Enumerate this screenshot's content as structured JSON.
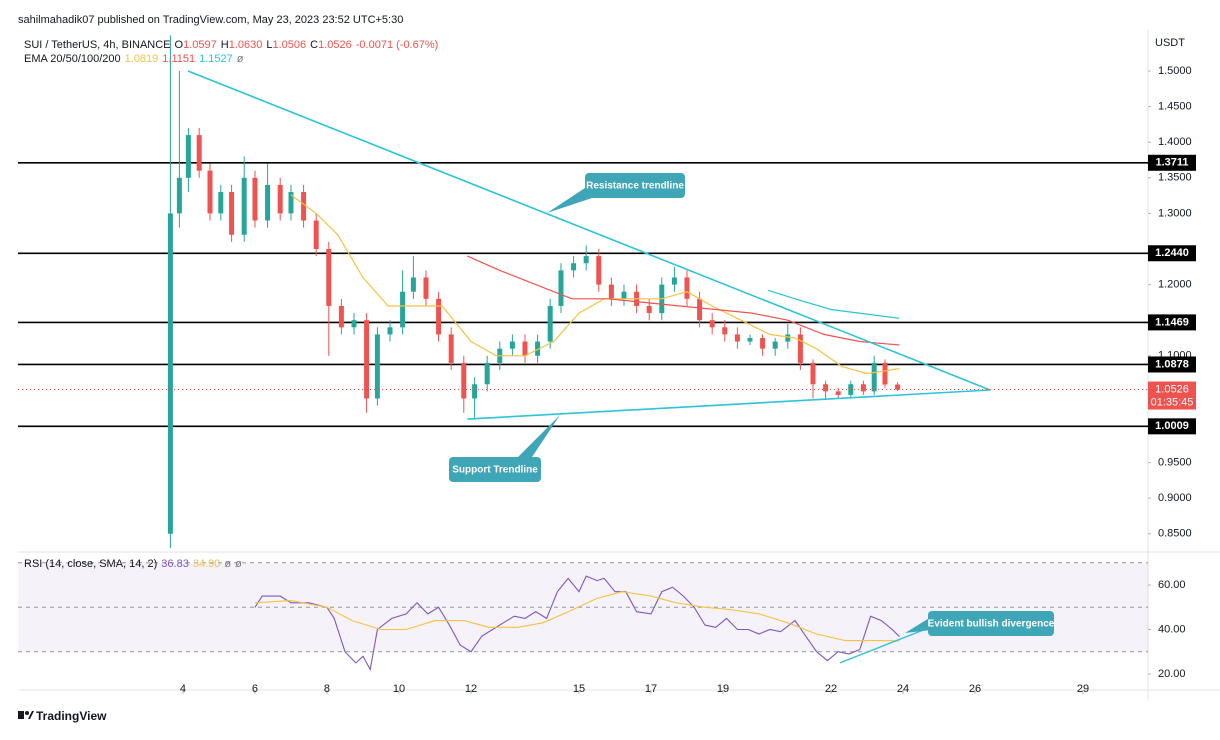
{
  "header": {
    "published": "sahilmahadik07 published on TradingView.com, May 23, 2023 23:52 UTC+5:30",
    "symbol": "SUI / TetherUS, 4h, BINANCE",
    "ohlc": [
      {
        "key": "O",
        "value": "1.0597"
      },
      {
        "key": "H",
        "value": "1.0630"
      },
      {
        "key": "L",
        "value": "1.0506"
      },
      {
        "key": "C",
        "value": "1.0526"
      },
      {
        "key": "",
        "value": "-0.0071 (-0.67%)"
      }
    ],
    "ohlc_color": "#ef5350",
    "ema_label": "EMA 20/50/100/200",
    "ema_values": [
      {
        "text": "1.0819",
        "color": "#f5c242"
      },
      {
        "text": "1.1151",
        "color": "#ef5350"
      },
      {
        "text": "1.1527",
        "color": "#26c6da"
      },
      {
        "text": "ø",
        "color": "#787b86"
      }
    ],
    "footer": "TradingView"
  },
  "chart_data": [
    {
      "type": "candlestick",
      "price_unit": "USDT",
      "up_color": "#26a69a",
      "down_color": "#ef5350",
      "x": [
        3.65,
        3.9,
        4.15,
        4.45,
        4.75,
        5.05,
        5.35,
        5.7,
        6.0,
        6.35,
        6.7,
        7.0,
        7.35,
        7.7,
        8.05,
        8.4,
        8.75,
        9.1,
        9.4,
        9.75,
        10.1,
        10.4,
        10.75,
        11.1,
        11.45,
        11.8,
        12.1,
        12.45,
        12.8,
        13.15,
        13.5,
        13.85,
        14.2,
        14.5,
        14.85,
        15.2,
        15.55,
        15.9,
        16.25,
        16.6,
        16.95,
        17.3,
        17.65,
        18.0,
        18.35,
        18.7,
        19.05,
        19.4,
        19.75,
        20.1,
        20.45,
        20.8,
        21.15,
        21.5,
        21.85,
        22.2,
        22.55,
        22.9,
        23.2,
        23.5,
        23.85
      ],
      "open": [
        0.85,
        1.3,
        1.35,
        1.41,
        1.36,
        1.3,
        1.33,
        1.27,
        1.35,
        1.29,
        1.34,
        1.3,
        1.33,
        1.29,
        1.25,
        1.17,
        1.14,
        1.15,
        1.04,
        1.13,
        1.14,
        1.19,
        1.21,
        1.18,
        1.13,
        1.09,
        1.04,
        1.06,
        1.09,
        1.11,
        1.12,
        1.1,
        1.12,
        1.17,
        1.22,
        1.23,
        1.24,
        1.2,
        1.18,
        1.19,
        1.17,
        1.16,
        1.2,
        1.21,
        1.18,
        1.15,
        1.14,
        1.13,
        1.12,
        1.125,
        1.11,
        1.12,
        1.13,
        1.09,
        1.06,
        1.05,
        1.045,
        1.06,
        1.05,
        1.09,
        1.0597
      ],
      "high": [
        1.55,
        1.5,
        1.42,
        1.42,
        1.37,
        1.34,
        1.34,
        1.38,
        1.36,
        1.37,
        1.35,
        1.34,
        1.34,
        1.3,
        1.26,
        1.18,
        1.16,
        1.16,
        1.14,
        1.15,
        1.22,
        1.24,
        1.22,
        1.19,
        1.14,
        1.1,
        1.07,
        1.1,
        1.12,
        1.13,
        1.13,
        1.13,
        1.18,
        1.23,
        1.24,
        1.255,
        1.25,
        1.21,
        1.2,
        1.2,
        1.18,
        1.21,
        1.225,
        1.22,
        1.19,
        1.16,
        1.15,
        1.14,
        1.13,
        1.13,
        1.125,
        1.145,
        1.14,
        1.095,
        1.065,
        1.055,
        1.065,
        1.065,
        1.1,
        1.095,
        1.063
      ],
      "low": [
        0.83,
        1.28,
        1.33,
        1.35,
        1.29,
        1.29,
        1.26,
        1.26,
        1.28,
        1.28,
        1.29,
        1.29,
        1.28,
        1.24,
        1.1,
        1.13,
        1.13,
        1.02,
        1.03,
        1.12,
        1.13,
        1.18,
        1.17,
        1.12,
        1.08,
        1.02,
        1.01,
        1.05,
        1.08,
        1.1,
        1.09,
        1.09,
        1.11,
        1.16,
        1.21,
        1.22,
        1.19,
        1.17,
        1.17,
        1.16,
        1.15,
        1.15,
        1.19,
        1.17,
        1.14,
        1.13,
        1.12,
        1.11,
        1.115,
        1.1,
        1.1,
        1.11,
        1.08,
        1.04,
        1.04,
        1.04,
        1.04,
        1.045,
        1.045,
        1.055,
        1.0506
      ],
      "close": [
        1.3,
        1.35,
        1.41,
        1.36,
        1.3,
        1.33,
        1.27,
        1.35,
        1.29,
        1.34,
        1.3,
        1.33,
        1.29,
        1.25,
        1.17,
        1.14,
        1.15,
        1.04,
        1.13,
        1.14,
        1.19,
        1.21,
        1.18,
        1.13,
        1.09,
        1.04,
        1.06,
        1.09,
        1.11,
        1.12,
        1.1,
        1.12,
        1.17,
        1.22,
        1.23,
        1.24,
        1.2,
        1.18,
        1.19,
        1.17,
        1.16,
        1.2,
        1.21,
        1.18,
        1.15,
        1.14,
        1.13,
        1.12,
        1.125,
        1.11,
        1.12,
        1.13,
        1.09,
        1.06,
        1.05,
        1.045,
        1.06,
        1.05,
        1.09,
        1.0597,
        1.0526
      ],
      "lines": [
        {
          "color": "#f5c242",
          "x": [
            7.0,
            7.7,
            8.3,
            9.0,
            9.7,
            10.5,
            11.2,
            12.0,
            12.7,
            13.5,
            14.3,
            15.0,
            15.7,
            16.5,
            17.3,
            18.0,
            18.7,
            19.5,
            20.3,
            21.0,
            21.6,
            22.3,
            23.0,
            23.9
          ],
          "values": [
            1.326,
            1.3,
            1.27,
            1.21,
            1.17,
            1.17,
            1.17,
            1.12,
            1.1,
            1.1,
            1.12,
            1.16,
            1.18,
            1.18,
            1.18,
            1.19,
            1.17,
            1.15,
            1.13,
            1.125,
            1.11,
            1.085,
            1.075,
            1.0819
          ]
        },
        {
          "color": "#ef5350",
          "x": [
            11.9,
            12.8,
            13.8,
            14.8,
            15.8,
            16.8,
            17.8,
            18.8,
            19.8,
            20.8,
            21.8,
            22.8,
            23.9
          ],
          "values": [
            1.24,
            1.22,
            1.2,
            1.18,
            1.18,
            1.175,
            1.17,
            1.165,
            1.16,
            1.15,
            1.13,
            1.12,
            1.1151
          ]
        },
        {
          "color": "#26c6da",
          "x": [
            20.25,
            21.0,
            22.0,
            23.9
          ],
          "values": [
            1.192,
            1.18,
            1.165,
            1.1527
          ]
        }
      ],
      "levels": [
        {
          "value": 1.3711,
          "label": "1.3711"
        },
        {
          "value": 1.244,
          "label": "1.2440"
        },
        {
          "value": 1.1469,
          "label": "1.1469"
        },
        {
          "value": 1.0878,
          "label": "1.0878"
        },
        {
          "value": 1.0009,
          "label": "1.0009"
        }
      ],
      "last": {
        "value": 1.0526,
        "label": "1.0526",
        "countdown": "01:35:45",
        "color": "#ef5350"
      },
      "trendlines": [
        {
          "color": "#2bc4d8",
          "x": [
            4.14,
            26.42
          ],
          "values": [
            1.5,
            1.052
          ]
        },
        {
          "color": "#2bc4d8",
          "x": [
            11.9,
            26.42
          ],
          "values": [
            1.011,
            1.052
          ]
        }
      ],
      "annotations": [
        "Resistance trendline",
        "Support Trendline"
      ],
      "xlim": [
        -0.583,
        30.806
      ],
      "ylim": [
        0.8272,
        1.5548
      ],
      "xticks": [
        4,
        6,
        8,
        10,
        12,
        15,
        17,
        19,
        22,
        24,
        26,
        29
      ],
      "yticks": [
        {
          "value": 1.5,
          "label": "1.5000"
        },
        {
          "value": 1.45,
          "label": "1.4500"
        },
        {
          "value": 1.4,
          "label": "1.4000"
        },
        {
          "value": 1.35,
          "label": "1.3500"
        },
        {
          "value": 1.3,
          "label": "1.3000"
        },
        {
          "value": 1.2,
          "label": "1.2000"
        },
        {
          "value": 1.1,
          "label": "1.1000"
        },
        {
          "value": 0.95,
          "label": "0.9500"
        },
        {
          "value": 0.9,
          "label": "0.9000"
        },
        {
          "value": 0.85,
          "label": "0.8500"
        }
      ]
    },
    {
      "type": "line",
      "title": "RSI (14, close, SMA, 14, 2)",
      "legend": [
        {
          "text": "36.83",
          "color": "#7e57c2"
        },
        {
          "text": "34.90",
          "color": "#f5c242"
        },
        {
          "text": "ø",
          "color": "#787b86"
        },
        {
          "text": "ø",
          "color": "#787b86"
        }
      ],
      "series": [
        {
          "color": "#7e57c2",
          "x": [
            6.0,
            6.2,
            6.7,
            7.0,
            7.5,
            8.0,
            8.2,
            8.5,
            8.8,
            9.0,
            9.2,
            9.4,
            9.8,
            10.2,
            10.5,
            10.8,
            11.1,
            11.4,
            11.7,
            12.0,
            12.3,
            12.6,
            12.9,
            13.2,
            13.5,
            13.8,
            14.1,
            14.4,
            14.7,
            15.0,
            15.2,
            15.5,
            15.7,
            16.0,
            16.3,
            16.6,
            17.0,
            17.3,
            17.6,
            17.9,
            18.2,
            18.5,
            18.8,
            19.1,
            19.4,
            19.7,
            20.0,
            20.3,
            20.6,
            21.0,
            21.3,
            21.6,
            21.9,
            22.2,
            22.5,
            22.8,
            23.1,
            23.4,
            23.7,
            23.9
          ],
          "values": [
            50,
            55,
            55,
            52,
            52,
            50,
            45,
            30,
            25,
            28,
            22,
            40,
            45,
            47,
            52,
            47,
            50,
            42,
            33,
            30,
            37,
            40,
            43,
            46,
            45,
            48,
            45,
            57,
            63,
            57,
            64,
            62,
            63,
            57,
            57,
            48,
            47,
            57,
            59,
            55,
            50,
            42,
            41,
            45,
            40,
            40,
            38,
            40,
            39,
            44,
            37,
            30,
            26,
            30,
            29,
            31,
            46,
            44,
            40,
            36.83
          ]
        },
        {
          "color": "#f5c242",
          "x": [
            6.0,
            7.0,
            8.0,
            8.7,
            9.5,
            10.2,
            11.0,
            11.8,
            12.5,
            13.3,
            14.0,
            14.7,
            15.5,
            16.2,
            17.0,
            17.7,
            18.5,
            19.2,
            20.0,
            20.8,
            21.6,
            22.4,
            23.1,
            23.9
          ],
          "values": [
            52,
            53,
            50,
            44,
            40,
            40,
            44,
            44,
            41,
            41,
            43,
            48,
            54,
            57,
            55,
            52,
            50,
            49,
            47,
            43,
            38,
            35,
            35,
            34.9
          ]
        }
      ],
      "divergence": {
        "color": "#2bc4d8",
        "x": [
          22.25,
          24.6
        ],
        "values": [
          25,
          40
        ]
      },
      "annotations": [
        "Evident bullish divergence"
      ],
      "band": [
        30,
        70
      ],
      "midline": 50,
      "band_color": "#7e57c2",
      "xlim": [
        -0.583,
        30.806
      ],
      "ylim": [
        13.7,
        73.5
      ],
      "yticks": [
        {
          "value": 60,
          "label": "60.00"
        },
        {
          "value": 40,
          "label": "40.00"
        },
        {
          "value": 20,
          "label": "20.00"
        }
      ]
    }
  ]
}
